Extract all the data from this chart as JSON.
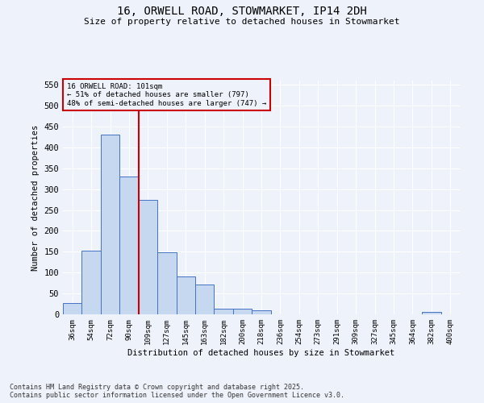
{
  "title_line1": "16, ORWELL ROAD, STOWMARKET, IP14 2DH",
  "title_line2": "Size of property relative to detached houses in Stowmarket",
  "xlabel": "Distribution of detached houses by size in Stowmarket",
  "ylabel": "Number of detached properties",
  "categories": [
    "36sqm",
    "54sqm",
    "72sqm",
    "90sqm",
    "109sqm",
    "127sqm",
    "145sqm",
    "163sqm",
    "182sqm",
    "200sqm",
    "218sqm",
    "236sqm",
    "254sqm",
    "273sqm",
    "291sqm",
    "309sqm",
    "327sqm",
    "345sqm",
    "364sqm",
    "382sqm",
    "400sqm"
  ],
  "values": [
    27,
    152,
    430,
    330,
    275,
    148,
    90,
    72,
    13,
    13,
    10,
    0,
    0,
    0,
    0,
    0,
    0,
    0,
    0,
    5,
    0
  ],
  "bar_color": "#c5d8f0",
  "bar_edge_color": "#4472c4",
  "bar_width": 1.0,
  "vline_x": 3.5,
  "vline_color": "#cc0000",
  "annotation_line1": "16 ORWELL ROAD: 101sqm",
  "annotation_line2": "← 51% of detached houses are smaller (797)",
  "annotation_line3": "48% of semi-detached houses are larger (747) →",
  "annotation_box_color": "#cc0000",
  "ylim": [
    0,
    560
  ],
  "yticks": [
    0,
    50,
    100,
    150,
    200,
    250,
    300,
    350,
    400,
    450,
    500,
    550
  ],
  "bg_color": "#eef2fb",
  "grid_color": "#ffffff",
  "footer_line1": "Contains HM Land Registry data © Crown copyright and database right 2025.",
  "footer_line2": "Contains public sector information licensed under the Open Government Licence v3.0."
}
